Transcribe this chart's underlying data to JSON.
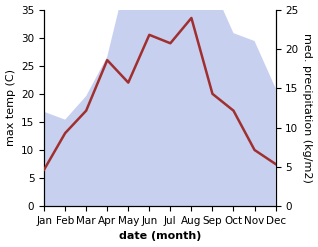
{
  "months": [
    "Jan",
    "Feb",
    "Mar",
    "Apr",
    "May",
    "Jun",
    "Jul",
    "Aug",
    "Sep",
    "Oct",
    "Nov",
    "Dec"
  ],
  "max_temp": [
    6.5,
    13,
    17,
    26,
    22,
    30.5,
    29,
    33.5,
    20,
    17,
    10,
    7.5
  ],
  "precipitation": [
    12,
    11,
    14,
    19,
    30,
    33,
    29,
    33,
    28,
    22,
    21,
    15
  ],
  "temp_color": "#a03030",
  "precip_fill_color": "#c8d0f0",
  "temp_ylim": [
    0,
    35
  ],
  "precip_ylim": [
    0,
    25
  ],
  "temp_yticks": [
    0,
    5,
    10,
    15,
    20,
    25,
    30,
    35
  ],
  "precip_yticks": [
    0,
    5,
    10,
    15,
    20,
    25
  ],
  "xlabel": "date (month)",
  "ylabel_left": "max temp (C)",
  "ylabel_right": "med. precipitation (kg/m2)",
  "label_fontsize": 8,
  "tick_fontsize": 7.5,
  "background_color": "#ffffff"
}
